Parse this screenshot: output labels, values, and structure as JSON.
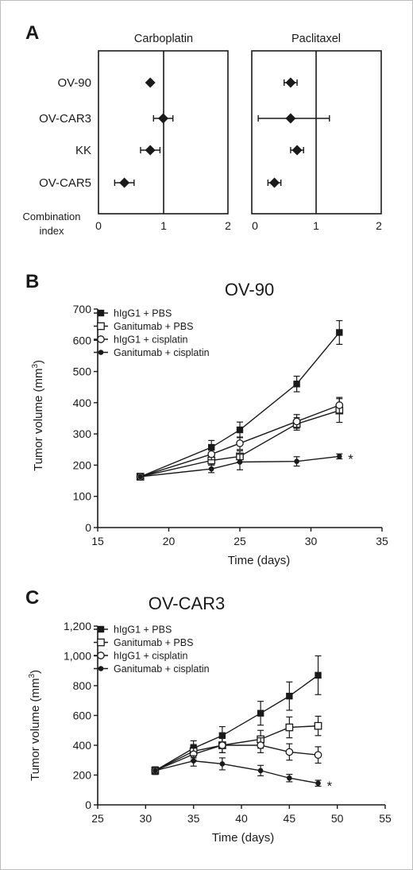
{
  "figure": {
    "letters": {
      "a": "A",
      "b": "B",
      "c": "C"
    }
  },
  "chart_data": [
    {
      "type": "scatter",
      "panel": "A",
      "subplots": [
        {
          "title": "Carboplatin",
          "categories": [
            "OV-90",
            "OV-CAR3",
            "KK",
            "OV-CAR5"
          ],
          "values": [
            0.8,
            1.0,
            0.8,
            0.4
          ],
          "error": [
            [
              0.8,
              0.8
            ],
            [
              0.85,
              1.15
            ],
            [
              0.65,
              0.95
            ],
            [
              0.25,
              0.55
            ]
          ],
          "xticks": [
            0,
            1,
            2
          ],
          "xlim": [
            0,
            2
          ],
          "reference_line": 1
        },
        {
          "title": "Paclitaxel",
          "categories": [
            "OV-90",
            "OV-CAR3",
            "KK",
            "OV-CAR5"
          ],
          "values": [
            0.6,
            0.6,
            0.7,
            0.35
          ],
          "error": [
            [
              0.5,
              0.7
            ],
            [
              0.1,
              1.2
            ],
            [
              0.6,
              0.8
            ],
            [
              0.25,
              0.45
            ]
          ],
          "xticks": [
            0,
            1,
            2
          ],
          "xlim": [
            0,
            2
          ],
          "reference_line": 1
        }
      ],
      "xlabel_line1": "Combination",
      "xlabel_line2": "index",
      "marker": "diamond"
    },
    {
      "type": "line",
      "panel": "B",
      "title": "OV-90",
      "xlabel": "Time (days)",
      "ylabel": "Tumor volume (mm",
      "ylabel_sup": "3",
      "ylabel_close": ")",
      "x": [
        18,
        23,
        25,
        29,
        32
      ],
      "xlim": [
        15,
        35
      ],
      "xticks": [
        "15",
        "20",
        "25",
        "30",
        "35"
      ],
      "ylim": [
        0,
        700
      ],
      "yticks": [
        "0",
        "100",
        "200",
        "300",
        "400",
        "500",
        "600",
        "700"
      ],
      "series": [
        {
          "name": "hIgG1 + PBS",
          "marker": "filled-square",
          "values": [
            163,
            257,
            313,
            460,
            625
          ],
          "errors": [
            0,
            22,
            25,
            25,
            38
          ]
        },
        {
          "name": "Ganitumab + PBS",
          "marker": "open-square",
          "values": [
            163,
            215,
            228,
            332,
            375
          ],
          "errors": [
            0,
            15,
            18,
            20,
            38
          ]
        },
        {
          "name": "hIgG1 + cisplatin",
          "marker": "open-circle",
          "values": [
            163,
            235,
            270,
            340,
            392
          ],
          "errors": [
            0,
            18,
            20,
            22,
            25
          ]
        },
        {
          "name": "Ganitumab + cisplatin",
          "marker": "filled-circle",
          "values": [
            163,
            188,
            210,
            212,
            228
          ],
          "errors": [
            0,
            12,
            25,
            15,
            8
          ]
        }
      ],
      "significance_marker": "*",
      "legend": "top-left"
    },
    {
      "type": "line",
      "panel": "C",
      "title": "OV-CAR3",
      "xlabel": "Time (days)",
      "ylabel": "Tumor volume (mm",
      "ylabel_sup": "3",
      "ylabel_close": ")",
      "x": [
        31,
        35,
        38,
        42,
        45,
        48
      ],
      "xlim": [
        25,
        55
      ],
      "xticks": [
        "25",
        "30",
        "35",
        "40",
        "45",
        "50",
        "55"
      ],
      "ylim": [
        0,
        1200
      ],
      "yticks": [
        "0",
        "200",
        "400",
        "600",
        "800",
        "1,000",
        "1,200"
      ],
      "series": [
        {
          "name": "hIgG1 + PBS",
          "marker": "filled-square",
          "values": [
            230,
            380,
            465,
            615,
            730,
            870
          ],
          "errors": [
            25,
            50,
            60,
            80,
            95,
            130
          ]
        },
        {
          "name": "Ganitumab + PBS",
          "marker": "open-square",
          "values": [
            230,
            360,
            400,
            440,
            520,
            530
          ],
          "errors": [
            25,
            45,
            50,
            60,
            70,
            65
          ]
        },
        {
          "name": "hIgG1 + cisplatin",
          "marker": "open-circle",
          "values": [
            230,
            340,
            400,
            400,
            355,
            335
          ],
          "errors": [
            25,
            40,
            50,
            50,
            55,
            55
          ]
        },
        {
          "name": "Ganitumab + cisplatin",
          "marker": "filled-circle",
          "values": [
            230,
            295,
            275,
            230,
            180,
            145
          ],
          "errors": [
            25,
            35,
            40,
            35,
            25,
            20
          ]
        }
      ],
      "significance_marker": "*",
      "legend": "top-left"
    }
  ]
}
